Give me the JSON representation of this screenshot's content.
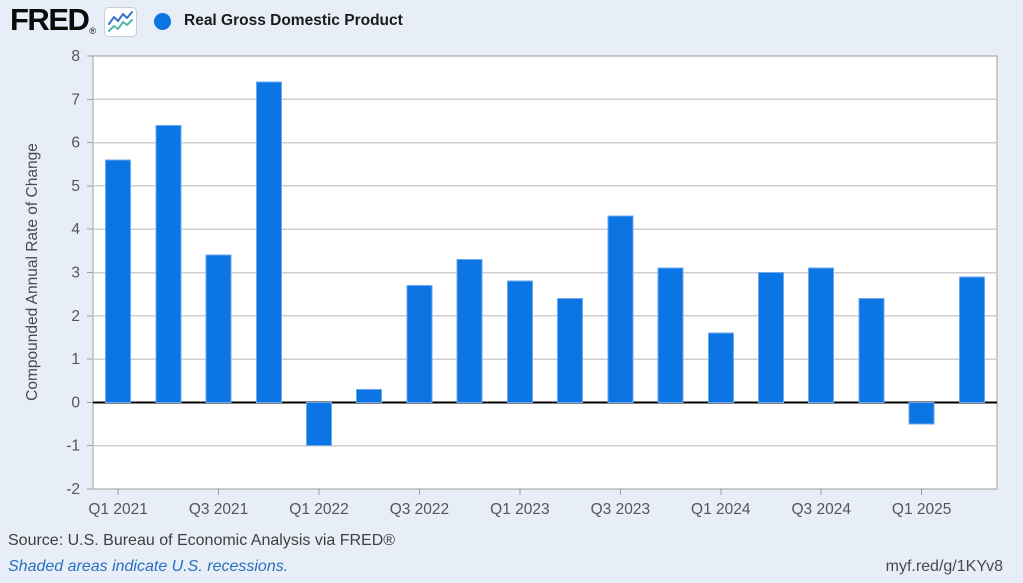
{
  "header": {
    "logo_text": "FRED",
    "logo_registered": "®",
    "legend_series_label": "Real Gross Domestic Product"
  },
  "chart_data": {
    "type": "bar",
    "title": "Real Gross Domestic Product",
    "ylabel": "Compounded Annual Rate of Change",
    "xlabel": "",
    "ylim": [
      -2,
      8
    ],
    "y_tick_step": 1,
    "grid": true,
    "legend_position": "top-left",
    "categories": [
      "Q1 2021",
      "Q2 2021",
      "Q3 2021",
      "Q4 2021",
      "Q1 2022",
      "Q2 2022",
      "Q3 2022",
      "Q4 2022",
      "Q1 2023",
      "Q2 2023",
      "Q3 2023",
      "Q4 2023",
      "Q1 2024",
      "Q2 2024",
      "Q3 2024",
      "Q4 2024",
      "Q1 2025",
      "Q2 2025"
    ],
    "x_tick_labels": [
      "Q1 2021",
      "Q3 2021",
      "Q1 2022",
      "Q3 2022",
      "Q1 2023",
      "Q3 2023",
      "Q1 2024",
      "Q3 2024",
      "Q1 2025"
    ],
    "series": [
      {
        "name": "Real Gross Domestic Product",
        "values": [
          5.6,
          6.4,
          3.4,
          7.4,
          -1.0,
          0.3,
          2.7,
          3.3,
          2.8,
          2.4,
          4.3,
          3.1,
          1.6,
          3.0,
          3.1,
          2.4,
          -0.5,
          2.9
        ]
      }
    ],
    "bar_color": "#0a75e3",
    "bar_border_color": "#6ea9ee",
    "zero_line_color": "#000000",
    "background_color": "#e8eef7",
    "plot_background": "#ffffff",
    "gridline_color": "#cfcfcf",
    "axis_border_color": "#9e9e9e",
    "tick_label_color": "#555555"
  },
  "footer": {
    "source_text": "Source: U.S. Bureau of Economic Analysis via FRED®",
    "recession_note": "Shaded areas indicate U.S. recessions.",
    "short_url": "myf.red/g/1KYv8"
  }
}
